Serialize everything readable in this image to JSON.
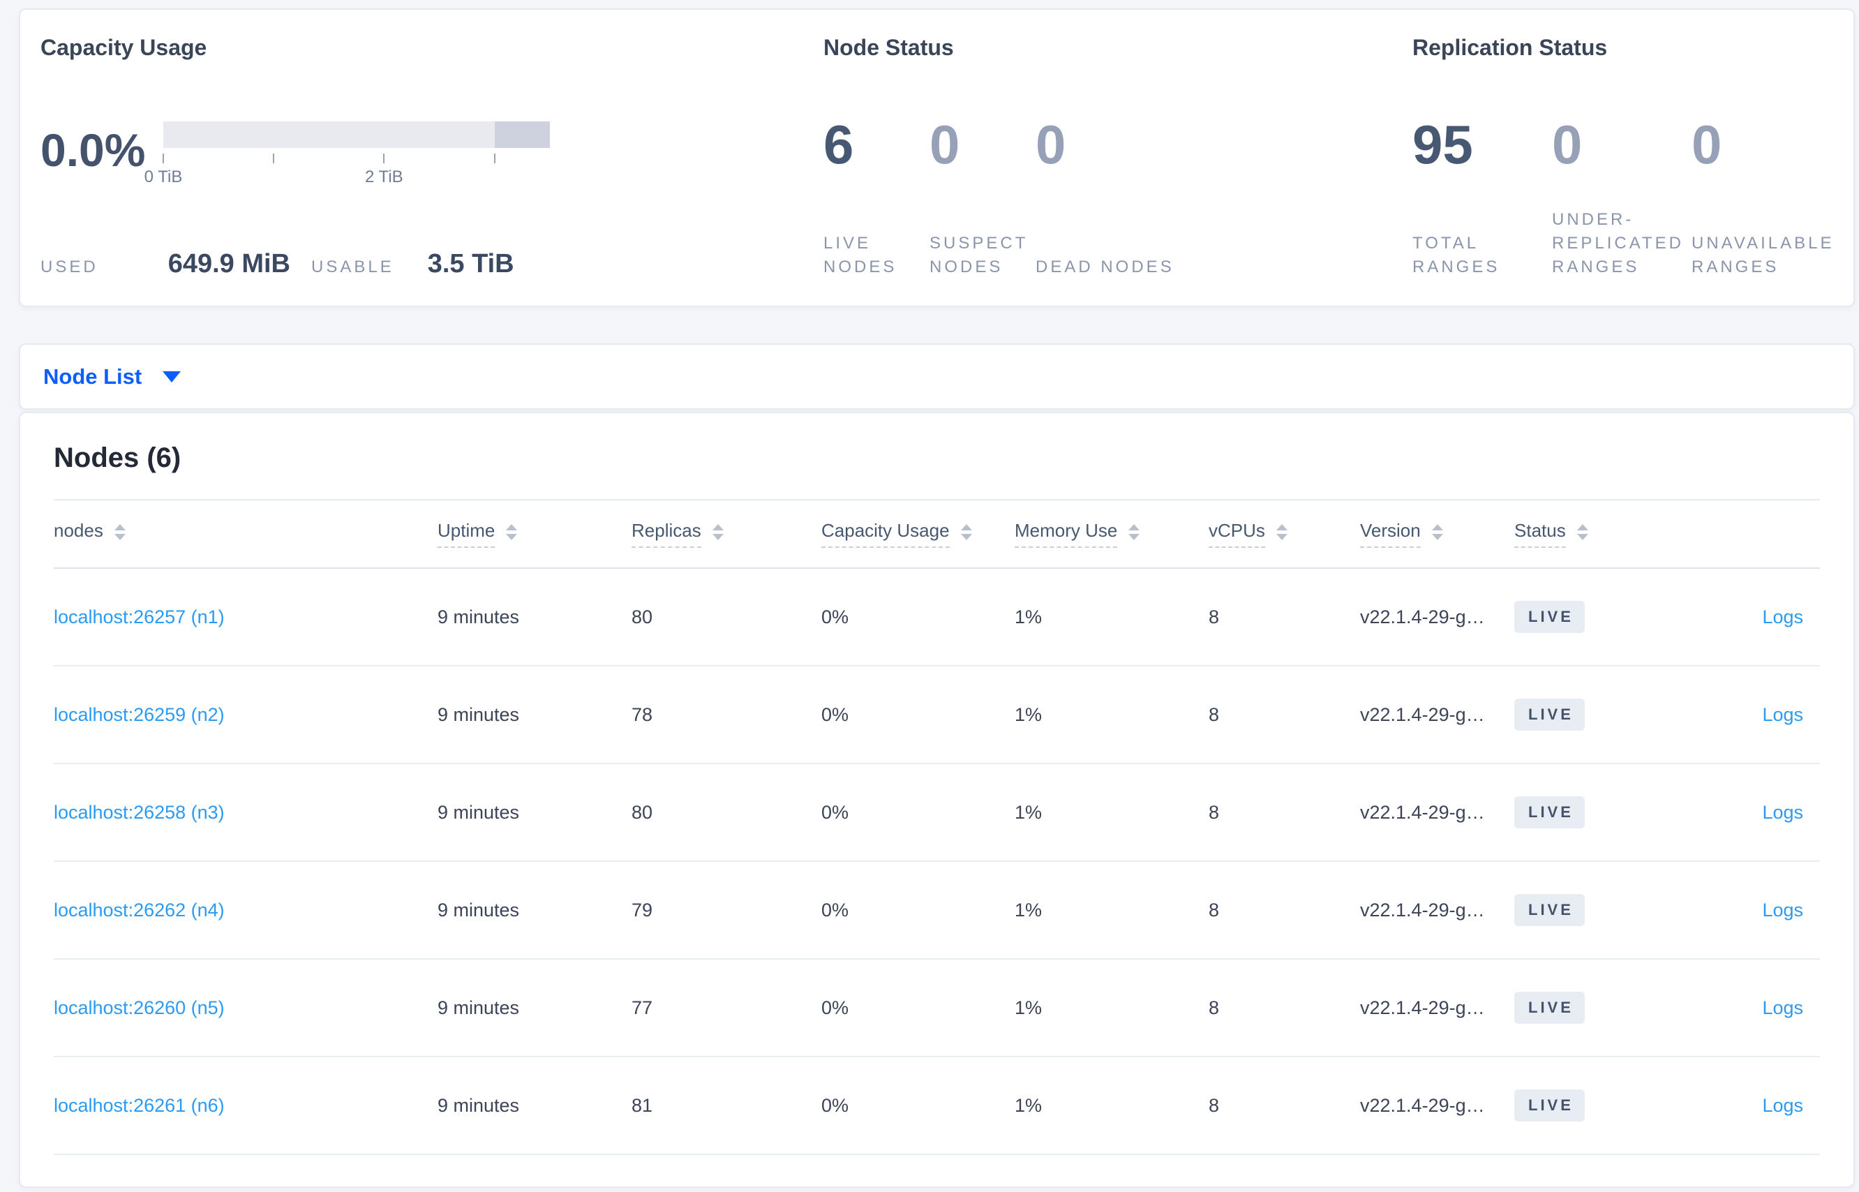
{
  "colors": {
    "page_background": "#f4f6fa",
    "card_background": "#ffffff",
    "link_blue": "#2b9af3",
    "dropdown_blue": "#0d5eff",
    "stat_primary": "#475872",
    "stat_dim": "#96a1b8",
    "label_gray": "#8a95ac",
    "badge_background": "#e8edf4",
    "badge_text": "#44536b",
    "bar_track": "#e8eaf0",
    "bar_secondary_segment": "#cdd2de"
  },
  "summary": {
    "capacity": {
      "title": "Capacity Usage",
      "percent": "0.0%",
      "used_label": "USED",
      "used_value": "649.9 MiB",
      "usable_label": "USABLE",
      "usable_value": "3.5 TiB",
      "bar": {
        "used_pct": 0,
        "secondary_segment_start_pct": 85.7,
        "ticks_pct": [
          0,
          28.6,
          57.1,
          85.7
        ],
        "tick_labels": [
          {
            "pct": 0,
            "text": "0 TiB"
          },
          {
            "pct": 57.1,
            "text": "2 TiB"
          }
        ]
      }
    },
    "node_status": {
      "title": "Node Status",
      "stats": [
        {
          "value": "6",
          "label": "LIVE NODES",
          "dim": false
        },
        {
          "value": "0",
          "label": "SUSPECT NODES",
          "dim": true
        },
        {
          "value": "0",
          "label": "DEAD NODES",
          "dim": true
        }
      ]
    },
    "replication": {
      "title": "Replication Status",
      "stats": [
        {
          "value": "95",
          "label": "TOTAL RANGES",
          "dim": false
        },
        {
          "value": "0",
          "label": "UNDER-REPLICATED RANGES",
          "dim": true
        },
        {
          "value": "0",
          "label": "UNAVAILABLE RANGES",
          "dim": true
        }
      ]
    }
  },
  "view_dropdown": {
    "label": "Node List"
  },
  "nodes_table": {
    "title": "Nodes (6)",
    "columns": [
      {
        "label": "nodes",
        "dashed": false
      },
      {
        "label": "Uptime",
        "dashed": true
      },
      {
        "label": "Replicas",
        "dashed": true
      },
      {
        "label": "Capacity Usage",
        "dashed": true
      },
      {
        "label": "Memory Use",
        "dashed": true
      },
      {
        "label": "vCPUs",
        "dashed": true
      },
      {
        "label": "Version",
        "dashed": true
      },
      {
        "label": "Status",
        "dashed": true
      }
    ],
    "rows": [
      {
        "address": "localhost:26257 (n1)",
        "uptime": "9 minutes",
        "replicas": "80",
        "capacity": "0%",
        "memory": "1%",
        "vcpus": "8",
        "version": "v22.1.4-29-g…",
        "status": "LIVE",
        "logs": "Logs"
      },
      {
        "address": "localhost:26259 (n2)",
        "uptime": "9 minutes",
        "replicas": "78",
        "capacity": "0%",
        "memory": "1%",
        "vcpus": "8",
        "version": "v22.1.4-29-g…",
        "status": "LIVE",
        "logs": "Logs"
      },
      {
        "address": "localhost:26258 (n3)",
        "uptime": "9 minutes",
        "replicas": "80",
        "capacity": "0%",
        "memory": "1%",
        "vcpus": "8",
        "version": "v22.1.4-29-g…",
        "status": "LIVE",
        "logs": "Logs"
      },
      {
        "address": "localhost:26262 (n4)",
        "uptime": "9 minutes",
        "replicas": "79",
        "capacity": "0%",
        "memory": "1%",
        "vcpus": "8",
        "version": "v22.1.4-29-g…",
        "status": "LIVE",
        "logs": "Logs"
      },
      {
        "address": "localhost:26260 (n5)",
        "uptime": "9 minutes",
        "replicas": "77",
        "capacity": "0%",
        "memory": "1%",
        "vcpus": "8",
        "version": "v22.1.4-29-g…",
        "status": "LIVE",
        "logs": "Logs"
      },
      {
        "address": "localhost:26261 (n6)",
        "uptime": "9 minutes",
        "replicas": "81",
        "capacity": "0%",
        "memory": "1%",
        "vcpus": "8",
        "version": "v22.1.4-29-g…",
        "status": "LIVE",
        "logs": "Logs"
      }
    ]
  }
}
